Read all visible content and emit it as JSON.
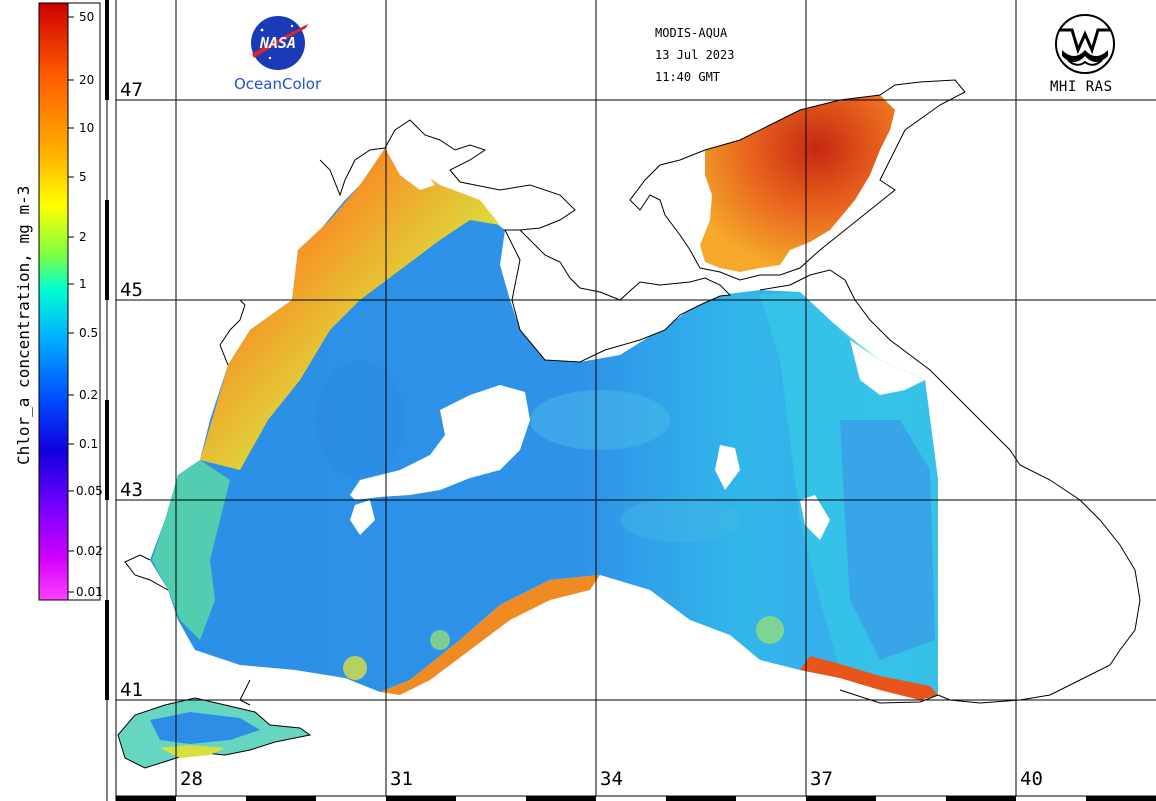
{
  "colorbar": {
    "title": "Chlor_a concentration, mg m-3",
    "ticks": [
      "50",
      "20",
      "10",
      "5",
      "2",
      "1",
      "0.5",
      "0.2",
      "0.1",
      "0.05",
      "0.02",
      "0.01"
    ]
  },
  "header": {
    "sensor": "MODIS-AQUA",
    "date": "13 Jul 2023",
    "time": "11:40 GMT"
  },
  "logos": {
    "left_brand": "NASA",
    "left_caption": "OceanColor",
    "right_caption": "MHI RAS",
    "left_icon": "nasa-meatball-icon",
    "right_icon": "mhi-ras-emblem-icon"
  },
  "grid": {
    "latitudes": [
      "47",
      "45",
      "43",
      "41"
    ],
    "longitudes": [
      "28",
      "31",
      "34",
      "37",
      "40"
    ]
  },
  "colors": {
    "high": "#cc1010",
    "mid_high": "#f5a020",
    "mid": "#20c8d8",
    "low": "#2a8ce8",
    "land": "#ffffff",
    "grid": "#000000"
  }
}
